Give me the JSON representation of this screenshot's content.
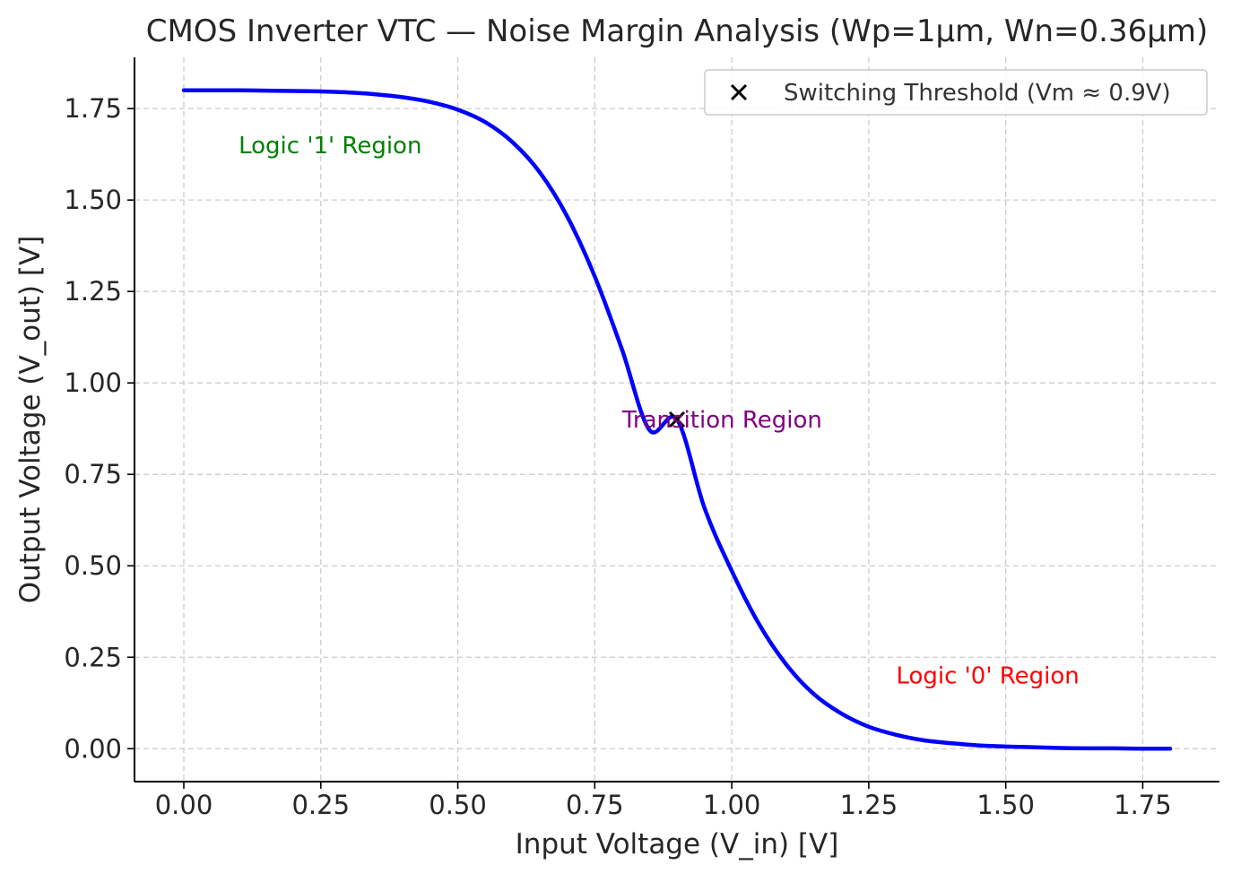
{
  "chart_data": {
    "type": "line",
    "title": "CMOS Inverter VTC — Noise Margin Analysis (Wp=1µm, Wn=0.36µm)",
    "xlabel": "Input Voltage (V_in) [V]",
    "ylabel": "Output Voltage (V_out) [V]",
    "xlim": [
      -0.09,
      1.89
    ],
    "ylim": [
      -0.09,
      1.89
    ],
    "xticks": [
      0.0,
      0.25,
      0.5,
      0.75,
      1.0,
      1.25,
      1.5,
      1.75
    ],
    "yticks": [
      0.0,
      0.25,
      0.5,
      0.75,
      1.0,
      1.25,
      1.5,
      1.75
    ],
    "xtick_labels": [
      "0.00",
      "0.25",
      "0.50",
      "0.75",
      "1.00",
      "1.25",
      "1.50",
      "1.75"
    ],
    "ytick_labels": [
      "0.00",
      "0.25",
      "0.50",
      "0.75",
      "1.00",
      "1.25",
      "1.50",
      "1.75"
    ],
    "grid": true,
    "legend_position": "top-right",
    "series": [
      {
        "color": "#0000ff",
        "x": [
          0.0,
          0.05,
          0.1,
          0.15,
          0.2,
          0.25,
          0.3,
          0.35,
          0.4,
          0.45,
          0.5,
          0.55,
          0.6,
          0.65,
          0.7,
          0.75,
          0.8,
          0.85,
          0.9,
          0.95,
          1.0,
          1.05,
          1.1,
          1.15,
          1.2,
          1.25,
          1.3,
          1.35,
          1.4,
          1.45,
          1.5,
          1.55,
          1.6,
          1.65,
          1.7,
          1.75,
          1.8
        ],
        "y": [
          1.8,
          1.8,
          1.8,
          1.799,
          1.798,
          1.797,
          1.794,
          1.789,
          1.781,
          1.768,
          1.747,
          1.713,
          1.658,
          1.575,
          1.454,
          1.291,
          1.09,
          0.871,
          0.9,
          0.659,
          0.486,
          0.34,
          0.229,
          0.149,
          0.096,
          0.06,
          0.038,
          0.023,
          0.015,
          0.009,
          0.006,
          0.004,
          0.002,
          0.001,
          0.001,
          0.0,
          0.0
        ]
      }
    ],
    "points": [
      {
        "name": "Switching Threshold (Vm ≈ 0.9V)",
        "x": 0.9,
        "y": 0.9,
        "marker": "x",
        "color": "#000000"
      }
    ],
    "annotations": [
      {
        "text": "Logic '1' Region",
        "x": 0.1,
        "y": 1.65,
        "color": "#008000"
      },
      {
        "text": "Transition Region",
        "x": 0.8,
        "y": 0.9,
        "color": "#800080"
      },
      {
        "text": "Logic '0' Region",
        "x": 1.3,
        "y": 0.2,
        "color": "#ff0000"
      }
    ]
  }
}
